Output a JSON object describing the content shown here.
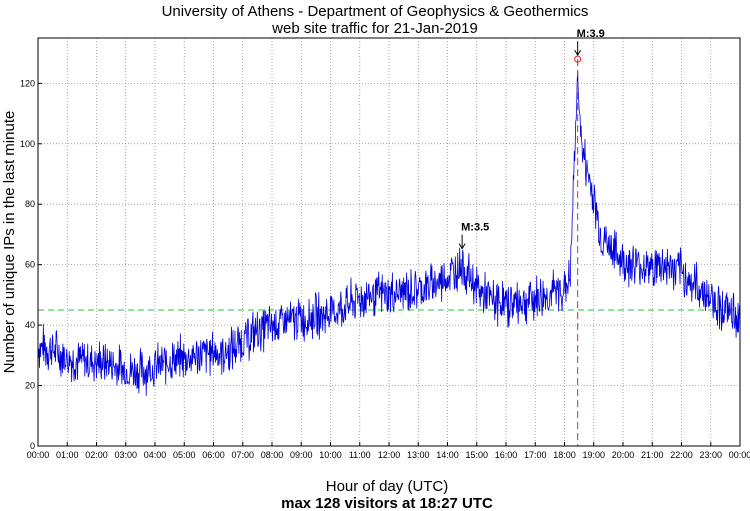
{
  "chart_data": {
    "type": "line",
    "title_lines": [
      "University of Athens - Department of Geophysics & Geothermics",
      "web site traffic for 21-Jan-2019"
    ],
    "xlabel": "Hour of day (UTC)",
    "subtitle": "max 128 visitors at 18:27 UTC",
    "ylabel": "Number of unique IPs in the last minute",
    "xlim": [
      0,
      24
    ],
    "ylim": [
      0,
      135
    ],
    "x_ticks": [
      {
        "value": 0,
        "label": "00:00"
      },
      {
        "value": 1,
        "label": "01:00"
      },
      {
        "value": 2,
        "label": "02:00"
      },
      {
        "value": 3,
        "label": "03:00"
      },
      {
        "value": 4,
        "label": "04:00"
      },
      {
        "value": 5,
        "label": "05:00"
      },
      {
        "value": 6,
        "label": "06:00"
      },
      {
        "value": 7,
        "label": "07:00"
      },
      {
        "value": 8,
        "label": "08:00"
      },
      {
        "value": 9,
        "label": "09:00"
      },
      {
        "value": 10,
        "label": "10:00"
      },
      {
        "value": 11,
        "label": "11:00"
      },
      {
        "value": 12,
        "label": "12:00"
      },
      {
        "value": 13,
        "label": "13:00"
      },
      {
        "value": 14,
        "label": "14:00"
      },
      {
        "value": 15,
        "label": "15:00"
      },
      {
        "value": 16,
        "label": "16:00"
      },
      {
        "value": 17,
        "label": "17:00"
      },
      {
        "value": 18,
        "label": "18:00"
      },
      {
        "value": 19,
        "label": "19:00"
      },
      {
        "value": 20,
        "label": "20:00"
      },
      {
        "value": 21,
        "label": "21:00"
      },
      {
        "value": 22,
        "label": "22:00"
      },
      {
        "value": 23,
        "label": "23:00"
      },
      {
        "value": 24,
        "label": "00:00"
      }
    ],
    "y_ticks": [
      {
        "value": 0,
        "label": "0"
      },
      {
        "value": 20,
        "label": "20"
      },
      {
        "value": 40,
        "label": "40"
      },
      {
        "value": 60,
        "label": "60"
      },
      {
        "value": 80,
        "label": "80"
      },
      {
        "value": 100,
        "label": "100"
      },
      {
        "value": 120,
        "label": "120"
      }
    ],
    "grid": true,
    "average_line": {
      "value": 45,
      "color": "#22cc22"
    },
    "max_marker": {
      "x": 18.45,
      "y": 128,
      "color": "#ee2222"
    },
    "series": [
      {
        "name": "visitors",
        "color": "#0000dd",
        "x": [
          0,
          0.5,
          1,
          1.5,
          2,
          2.5,
          3,
          3.5,
          4,
          4.5,
          5,
          5.5,
          6,
          6.5,
          7,
          7.5,
          8,
          8.5,
          9,
          9.5,
          10,
          10.5,
          11,
          11.5,
          12,
          12.5,
          13,
          13.5,
          14,
          14.25,
          14.5,
          14.75,
          15,
          15.5,
          16,
          16.5,
          17,
          17.5,
          18,
          18.2,
          18.35,
          18.45,
          18.6,
          18.8,
          19,
          19.25,
          19.5,
          20,
          20.5,
          21,
          21.5,
          22,
          22.5,
          23,
          23.5,
          24
        ],
        "values": [
          33,
          32,
          29,
          28,
          28,
          27,
          25,
          25,
          26,
          28,
          29,
          30,
          31,
          31,
          35,
          38,
          40,
          41,
          42,
          43,
          44,
          46,
          49,
          50,
          50,
          51,
          52,
          53,
          56,
          58,
          60,
          56,
          52,
          48,
          47,
          48,
          49,
          50,
          52,
          56,
          98,
          122,
          98,
          90,
          82,
          70,
          66,
          61,
          60,
          59,
          60,
          57,
          53,
          49,
          45,
          42
        ]
      }
    ],
    "annotations": [
      {
        "label": "M:3.5",
        "x": 14.5,
        "y": 64
      },
      {
        "label": "M:3.9",
        "x": 18.45,
        "y": 128
      }
    ]
  }
}
